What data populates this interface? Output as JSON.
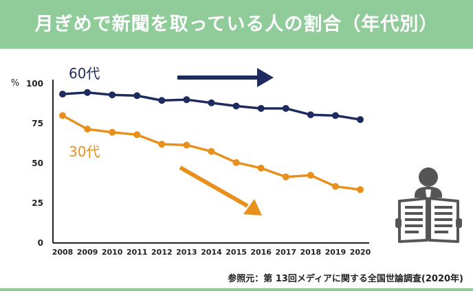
{
  "header": {
    "title": "月ぎめで新聞を取っている人の割合（年代別）"
  },
  "footer": {
    "source": "参照元：第 13回メディアに関する全国世論調査(2020年)"
  },
  "colors": {
    "header_bg": "#8fcc9a",
    "series_60": "#1e2b5e",
    "series_30": "#e8901d",
    "icon": "#555555"
  },
  "chart_data": {
    "type": "line",
    "title": "月ぎめで新聞を取っている人の割合（年代別）",
    "ylabel": "%",
    "xlabel": "",
    "ylim": [
      0,
      100
    ],
    "yticks": [
      0,
      25,
      50,
      75,
      100
    ],
    "x": [
      "2008",
      "2009",
      "2010",
      "2011",
      "2012",
      "2013",
      "2014",
      "2015",
      "2016",
      "2017",
      "2018",
      "2019",
      "2020"
    ],
    "series": [
      {
        "name": "60代",
        "color": "#1e2b5e",
        "values": [
          93.5,
          94.5,
          93,
          92.5,
          89.5,
          90,
          88,
          86,
          84.5,
          84.5,
          80.5,
          80,
          77.5
        ]
      },
      {
        "name": "30代",
        "color": "#e8901d",
        "values": [
          80,
          71.5,
          69.5,
          68,
          62,
          61.5,
          57.5,
          50.5,
          47,
          41.5,
          42.5,
          35.5,
          33.5
        ]
      }
    ],
    "grid": false,
    "legend": "inline labels",
    "annotations": [
      "trend arrow right (60代)",
      "trend arrow down-right (30代)"
    ]
  },
  "icon": {
    "name": "person-reading-newspaper-icon"
  }
}
